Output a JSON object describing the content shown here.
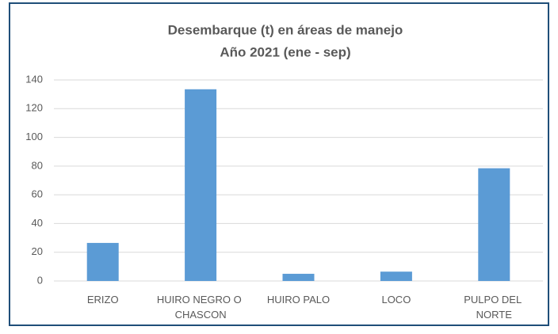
{
  "chart_data": {
    "type": "bar",
    "title": "Desembarque (t) en áreas de manejo",
    "subtitle": "Año 2021 (ene - sep)",
    "categories": [
      "ERIZO",
      "HUIRO NEGRO O CHASCON",
      "HUIRO PALO",
      "LOCO",
      "PULPO DEL NORTE"
    ],
    "values": [
      26.5,
      133.5,
      5,
      6.5,
      78.5
    ],
    "color": "#5b9bd5",
    "ylim": [
      0,
      140
    ],
    "yticks": [
      0,
      20,
      40,
      60,
      80,
      100,
      120,
      140
    ],
    "grid": true
  }
}
